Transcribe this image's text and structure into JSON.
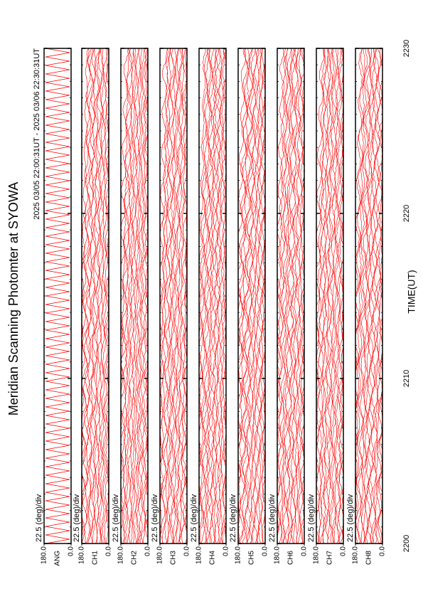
{
  "chart_data": {
    "type": "stacked-panels",
    "title": "Meridian Scanning Photomter at SYOWA",
    "subtitle": "2025 03/05 22:00:31UT - 2025 03/06 22:30:31UT",
    "x_label": "TIME(UT)",
    "xlim": [
      2200,
      2230
    ],
    "xticks": [
      2200,
      2210,
      2220,
      2230
    ],
    "color": "#ff0000",
    "panels": [
      {
        "name": "ANG",
        "scale": "22.5 (deg)/div",
        "ylim": [
          0,
          180
        ],
        "yticks": [
          {
            "value": 0,
            "label": "0.0"
          },
          {
            "value": 180,
            "label": "180.0"
          }
        ]
      },
      {
        "name": "CH1",
        "scale": "22.5 (deg)/div",
        "ylim": [
          0,
          180
        ],
        "yticks": [
          {
            "value": 0,
            "label": "0.0"
          },
          {
            "value": 180,
            "label": "180.0"
          }
        ]
      },
      {
        "name": "CH2",
        "scale": "22.5 (deg)/div",
        "ylim": [
          0,
          180
        ],
        "yticks": [
          {
            "value": 0,
            "label": "0.0"
          },
          {
            "value": 180,
            "label": "180.0"
          }
        ]
      },
      {
        "name": "CH3",
        "scale": "22.5 (deg)/div",
        "ylim": [
          0,
          180
        ],
        "yticks": [
          {
            "value": 0,
            "label": "0.0"
          },
          {
            "value": 180,
            "label": "180.0"
          }
        ]
      },
      {
        "name": "CH4",
        "scale": "22.5 (deg)/div",
        "ylim": [
          0,
          180
        ],
        "yticks": [
          {
            "value": 0,
            "label": "0.0"
          },
          {
            "value": 180,
            "label": "180.0"
          }
        ]
      },
      {
        "name": "CH5",
        "scale": "22.5 (deg)/div",
        "ylim": [
          0,
          180
        ],
        "yticks": [
          {
            "value": 0,
            "label": "0.0"
          },
          {
            "value": 180,
            "label": "180.0"
          }
        ]
      },
      {
        "name": "CH6",
        "scale": "22.5 (deg)/div",
        "ylim": [
          0,
          180
        ],
        "yticks": [
          {
            "value": 0,
            "label": "0.0"
          },
          {
            "value": 180,
            "label": "180.0"
          }
        ]
      },
      {
        "name": "CH7",
        "scale": "22.5 (deg)/div",
        "ylim": [
          0,
          180
        ],
        "yticks": [
          {
            "value": 0,
            "label": "0.0"
          },
          {
            "value": 180,
            "label": "180.0"
          }
        ]
      },
      {
        "name": "CH8",
        "scale": "22.5 (deg)/div",
        "ylim": [
          0,
          180
        ],
        "yticks": [
          {
            "value": 0,
            "label": "0.0"
          },
          {
            "value": 180,
            "label": "180.0"
          }
        ]
      }
    ]
  }
}
